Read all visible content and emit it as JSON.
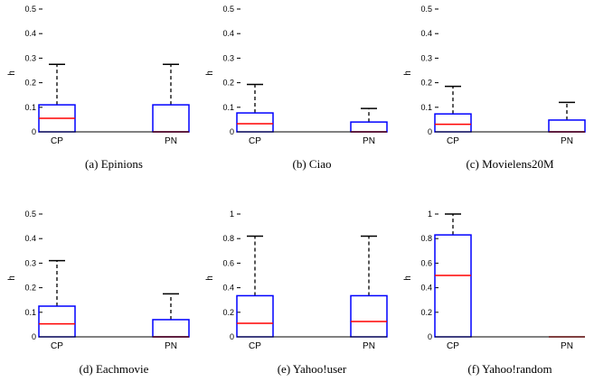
{
  "chart_data": [
    {
      "type": "boxplot",
      "caption": "(a)  Epinions",
      "ylabel": "h",
      "ylim": [
        0,
        0.5
      ],
      "yticks": [
        "0",
        "0.1",
        "0.2",
        "0.3",
        "0.4",
        "0.5"
      ],
      "categories": [
        "CP",
        "PN"
      ],
      "boxes": [
        {
          "min": 0,
          "q1": 0,
          "median": 0.055,
          "q3": 0.11,
          "max": 0.275
        },
        {
          "min": 0,
          "q1": 0,
          "median": 0.0,
          "q3": 0.11,
          "max": 0.275
        }
      ]
    },
    {
      "type": "boxplot",
      "caption": "(b)  Ciao",
      "ylabel": "h",
      "ylim": [
        0,
        0.5
      ],
      "yticks": [
        "0",
        "0.1",
        "0.2",
        "0.3",
        "0.4",
        "0.5"
      ],
      "categories": [
        "CP",
        "PN"
      ],
      "boxes": [
        {
          "min": 0,
          "q1": 0,
          "median": 0.033,
          "q3": 0.077,
          "max": 0.193
        },
        {
          "min": 0,
          "q1": 0,
          "median": 0.0,
          "q3": 0.04,
          "max": 0.095
        }
      ]
    },
    {
      "type": "boxplot",
      "caption": "(c)  Movielens20M",
      "ylabel": "h",
      "ylim": [
        0,
        0.5
      ],
      "yticks": [
        "0",
        "0.1",
        "0.2",
        "0.3",
        "0.4",
        "0.5"
      ],
      "categories": [
        "CP",
        "PN"
      ],
      "boxes": [
        {
          "min": 0,
          "q1": 0,
          "median": 0.031,
          "q3": 0.073,
          "max": 0.185
        },
        {
          "min": 0,
          "q1": 0,
          "median": 0.0,
          "q3": 0.048,
          "max": 0.12
        }
      ]
    },
    {
      "type": "boxplot",
      "caption": "(d)  Eachmovie",
      "ylabel": "h",
      "ylim": [
        0,
        0.5
      ],
      "yticks": [
        "0",
        "0.1",
        "0.2",
        "0.3",
        "0.4",
        "0.5"
      ],
      "categories": [
        "CP",
        "PN"
      ],
      "boxes": [
        {
          "min": 0,
          "q1": 0,
          "median": 0.053,
          "q3": 0.125,
          "max": 0.31
        },
        {
          "min": 0,
          "q1": 0,
          "median": 0.0,
          "q3": 0.07,
          "max": 0.175
        }
      ]
    },
    {
      "type": "boxplot",
      "caption": "(e)  Yahoo!user",
      "ylabel": "h",
      "ylim": [
        0,
        1
      ],
      "yticks": [
        "0",
        "0.2",
        "0.4",
        "0.6",
        "0.8",
        "1"
      ],
      "categories": [
        "CP",
        "PN"
      ],
      "boxes": [
        {
          "min": 0,
          "q1": 0,
          "median": 0.11,
          "q3": 0.335,
          "max": 0.82
        },
        {
          "min": 0,
          "q1": 0,
          "median": 0.125,
          "q3": 0.335,
          "max": 0.82
        }
      ]
    },
    {
      "type": "boxplot",
      "caption": "(f)  Yahoo!random",
      "ylabel": "h",
      "ylim": [
        0,
        1
      ],
      "yticks": [
        "0",
        "0.2",
        "0.4",
        "0.6",
        "0.8",
        "1"
      ],
      "categories": [
        "CP",
        "PN"
      ],
      "boxes": [
        {
          "min": 0,
          "q1": 0,
          "median": 0.5,
          "q3": 0.83,
          "max": 1.0
        },
        {
          "min": 0,
          "q1": 0,
          "median": 0.0,
          "q3": 0.0,
          "max": 0.0
        }
      ]
    }
  ],
  "colors": {
    "box": "#0000ff",
    "median": "#ff0000",
    "whisker": "#000000",
    "axis": "#000000"
  }
}
